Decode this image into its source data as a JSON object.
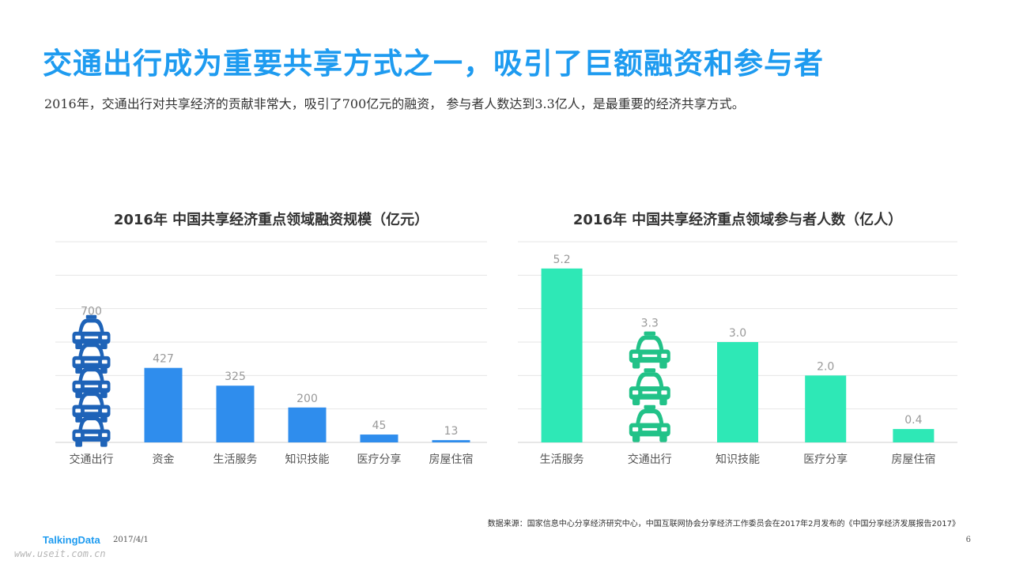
{
  "title": "交通出行成为重要共享方式之一，吸引了巨额融资和参与者",
  "subtitle": "2016年，交通出行对共享经济的贡献非常大，吸引了700亿元的融资，  参与者人数达到3.3亿人，是最重要的经济共享方式。",
  "chart_data": [
    {
      "type": "bar",
      "title": "2016年 中国共享经济重点领域融资规模（亿元）",
      "categories": [
        "交通出行",
        "资金",
        "生活服务",
        "知识技能",
        "医疗分享",
        "房屋住宿"
      ],
      "values": [
        700,
        427,
        325,
        200,
        45,
        13
      ],
      "value_labels": [
        "700",
        "427",
        "325",
        "200",
        "45",
        "13"
      ],
      "ylim": [
        0,
        1150
      ],
      "grid": true,
      "bar_color": "#2f8ded",
      "pictogram": {
        "category": "交通出行",
        "icon": "taxi-icon",
        "count": 5,
        "color": "#1e63b8"
      }
    },
    {
      "type": "bar",
      "title": "2016年 中国共享经济重点领域参与者人数（亿人）",
      "categories": [
        "生活服务",
        "交通出行",
        "知识技能",
        "医疗分享",
        "房屋住宿"
      ],
      "values": [
        5.2,
        3.3,
        3.0,
        2.0,
        0.4
      ],
      "value_labels": [
        "5.2",
        "3.3",
        "3.0",
        "2.0",
        "0.4"
      ],
      "ylim": [
        0,
        6
      ],
      "grid": true,
      "bar_color": "#2ee8b6",
      "pictogram": {
        "category": "交通出行",
        "icon": "taxi-icon",
        "count": 3,
        "color": "#22c288"
      }
    }
  ],
  "footer": {
    "source": "数据来源：国家信息中心分享经济研究中心，中国互联网协会分享经济工作委员会在2017年2月发布的《中国分享经济发展报告2017》",
    "brand": "TalkingData",
    "date": "2017/4/1",
    "page": "6",
    "watermark": "www.useit.com.cn"
  }
}
